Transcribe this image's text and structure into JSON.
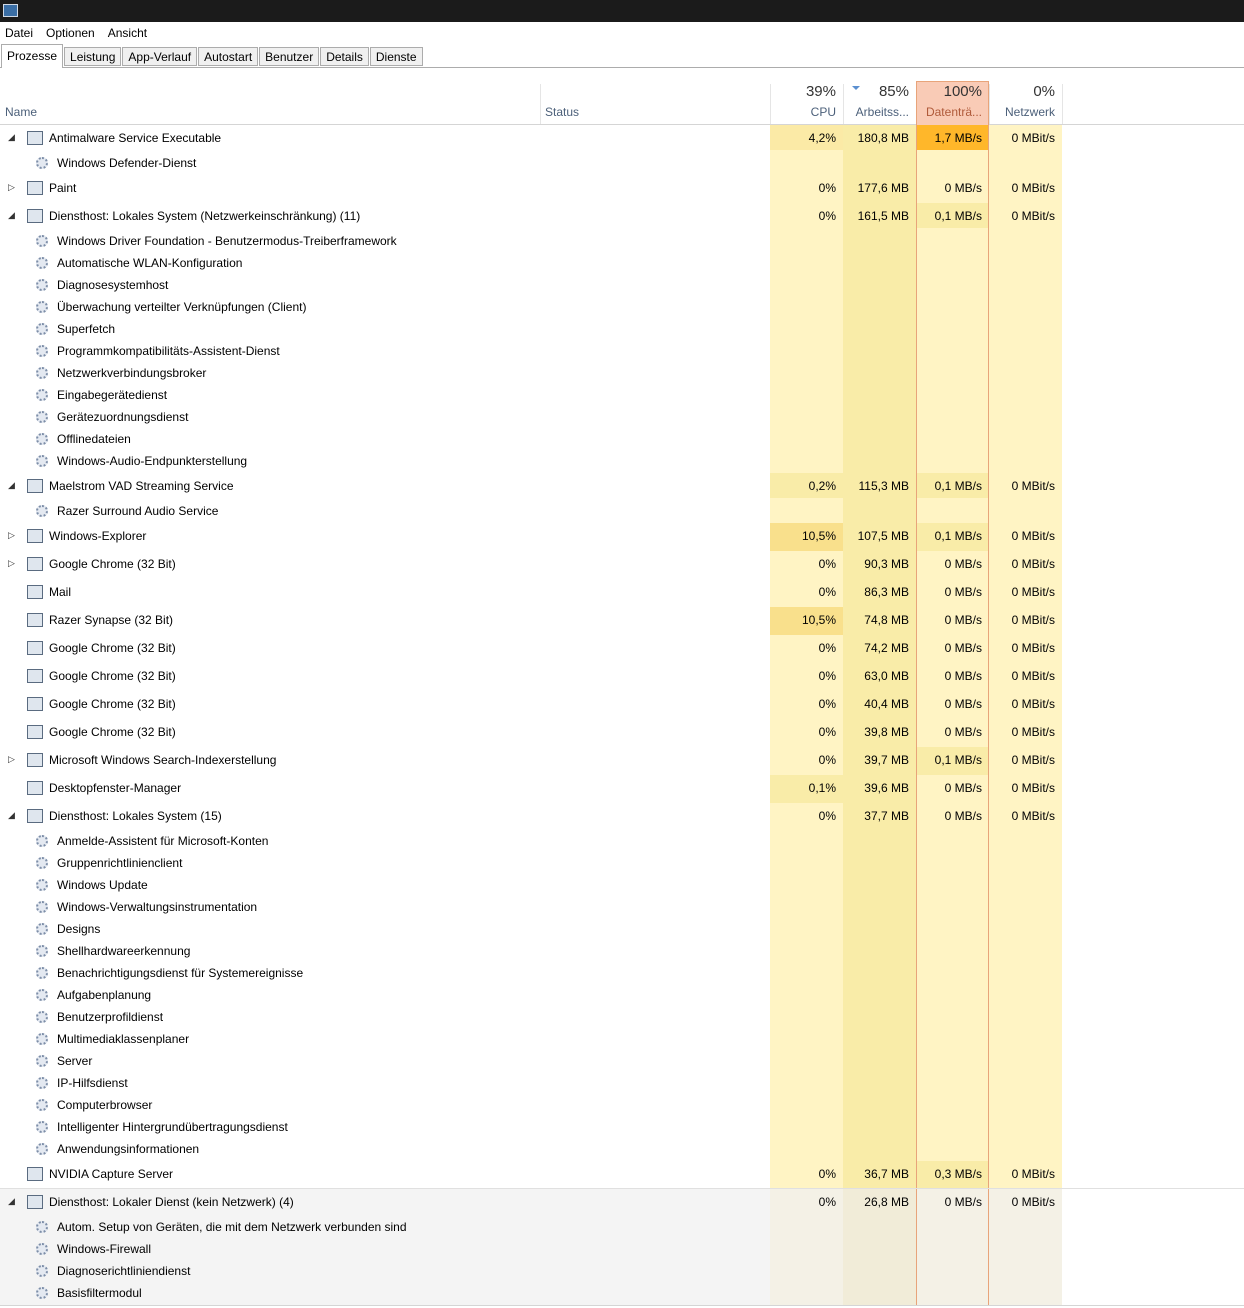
{
  "menu": [
    "Datei",
    "Optionen",
    "Ansicht"
  ],
  "tabs": [
    "Prozesse",
    "Leistung",
    "App-Verlauf",
    "Autostart",
    "Benutzer",
    "Details",
    "Dienste"
  ],
  "columns": [
    {
      "label": "Name"
    },
    {
      "label": "Status"
    },
    {
      "percent": "39%",
      "label": "CPU"
    },
    {
      "percent": "85%",
      "label": "Arbeitss..."
    },
    {
      "percent": "100%",
      "label": "Datenträ..."
    },
    {
      "percent": "0%",
      "label": "Netzwerk"
    }
  ],
  "rows": [
    {
      "name": "Antimalware Service Executable",
      "cpu": "4,2%",
      "memory": "180,8 MB",
      "disk": "1,7 MB/s",
      "network": "0 MBit/s",
      "children": [
        "Windows Defender-Dienst"
      ]
    },
    {
      "name": "Paint",
      "cpu": "0%",
      "memory": "177,6 MB",
      "disk": "0 MB/s",
      "network": "0 MBit/s",
      "expandable": true
    },
    {
      "name": "Diensthost: Lokales System (Netzwerkeinschränkung) (11)",
      "cpu": "0%",
      "memory": "161,5 MB",
      "disk": "0,1 MB/s",
      "network": "0 MBit/s",
      "children": [
        "Windows Driver Foundation - Benutzermodus-Treiberframework",
        "Automatische WLAN-Konfiguration",
        "Diagnosesystemhost",
        "Überwachung verteilter Verknüpfungen (Client)",
        "Superfetch",
        "Programmkompatibilitäts-Assistent-Dienst",
        "Netzwerkverbindungsbroker",
        "Eingabegerätedienst",
        "Gerätezuordnungsdienst",
        "Offlinedateien",
        "Windows-Audio-Endpunkterstellung"
      ]
    },
    {
      "name": "Maelstrom VAD Streaming Service",
      "cpu": "0,2%",
      "memory": "115,3 MB",
      "disk": "0,1 MB/s",
      "network": "0 MBit/s",
      "children": [
        "Razer Surround Audio Service"
      ]
    },
    {
      "name": "Windows-Explorer",
      "cpu": "10,5%",
      "memory": "107,5 MB",
      "disk": "0,1 MB/s",
      "network": "0 MBit/s",
      "expandable": true
    },
    {
      "name": "Google Chrome (32 Bit)",
      "cpu": "0%",
      "memory": "90,3 MB",
      "disk": "0 MB/s",
      "network": "0 MBit/s",
      "expandable": true
    },
    {
      "name": "Mail",
      "cpu": "0%",
      "memory": "86,3 MB",
      "disk": "0 MB/s",
      "network": "0 MBit/s"
    },
    {
      "name": "Razer Synapse (32 Bit)",
      "cpu": "10,5%",
      "memory": "74,8 MB",
      "disk": "0 MB/s",
      "network": "0 MBit/s"
    },
    {
      "name": "Google Chrome (32 Bit)",
      "cpu": "0%",
      "memory": "74,2 MB",
      "disk": "0 MB/s",
      "network": "0 MBit/s"
    },
    {
      "name": "Google Chrome (32 Bit)",
      "cpu": "0%",
      "memory": "63,0 MB",
      "disk": "0 MB/s",
      "network": "0 MBit/s"
    },
    {
      "name": "Google Chrome (32 Bit)",
      "cpu": "0%",
      "memory": "40,4 MB",
      "disk": "0 MB/s",
      "network": "0 MBit/s"
    },
    {
      "name": "Google Chrome (32 Bit)",
      "cpu": "0%",
      "memory": "39,8 MB",
      "disk": "0 MB/s",
      "network": "0 MBit/s"
    },
    {
      "name": "Microsoft Windows Search-Indexerstellung",
      "cpu": "0%",
      "memory": "39,7 MB",
      "disk": "0,1 MB/s",
      "network": "0 MBit/s",
      "expandable": true
    },
    {
      "name": "Desktopfenster-Manager",
      "cpu": "0,1%",
      "memory": "39,6 MB",
      "disk": "0 MB/s",
      "network": "0 MBit/s"
    },
    {
      "name": "Diensthost: Lokales System (15)",
      "cpu": "0%",
      "memory": "37,7 MB",
      "disk": "0 MB/s",
      "network": "0 MBit/s",
      "children": [
        "Anmelde-Assistent für Microsoft-Konten",
        "Gruppenrichtlinienclient",
        "Windows Update",
        "Windows-Verwaltungsinstrumentation",
        "Designs",
        "Shellhardwareerkennung",
        "Benachrichtigungsdienst für Systemereignisse",
        "Aufgabenplanung",
        "Benutzerprofildienst",
        "Multimediaklassenplaner",
        "Server",
        "IP-Hilfsdienst",
        "Computerbrowser",
        "Intelligenter Hintergrundübertragungsdienst",
        "Anwendungsinformationen"
      ]
    },
    {
      "name": "NVIDIA Capture Server",
      "cpu": "0%",
      "memory": "36,7 MB",
      "disk": "0,3 MB/s",
      "network": "0 MBit/s"
    },
    {
      "name": "Diensthost: Lokaler Dienst (kein Netzwerk) (4)",
      "cpu": "0%",
      "memory": "26,8 MB",
      "disk": "0 MB/s",
      "network": "0 MBit/s",
      "highlighted": true,
      "children": [
        "Autom. Setup von Geräten, die mit dem Netzwerk verbunden sind",
        "Windows-Firewall",
        "Diagnoserichtliniendienst",
        "Basisfiltermodul"
      ]
    }
  ]
}
